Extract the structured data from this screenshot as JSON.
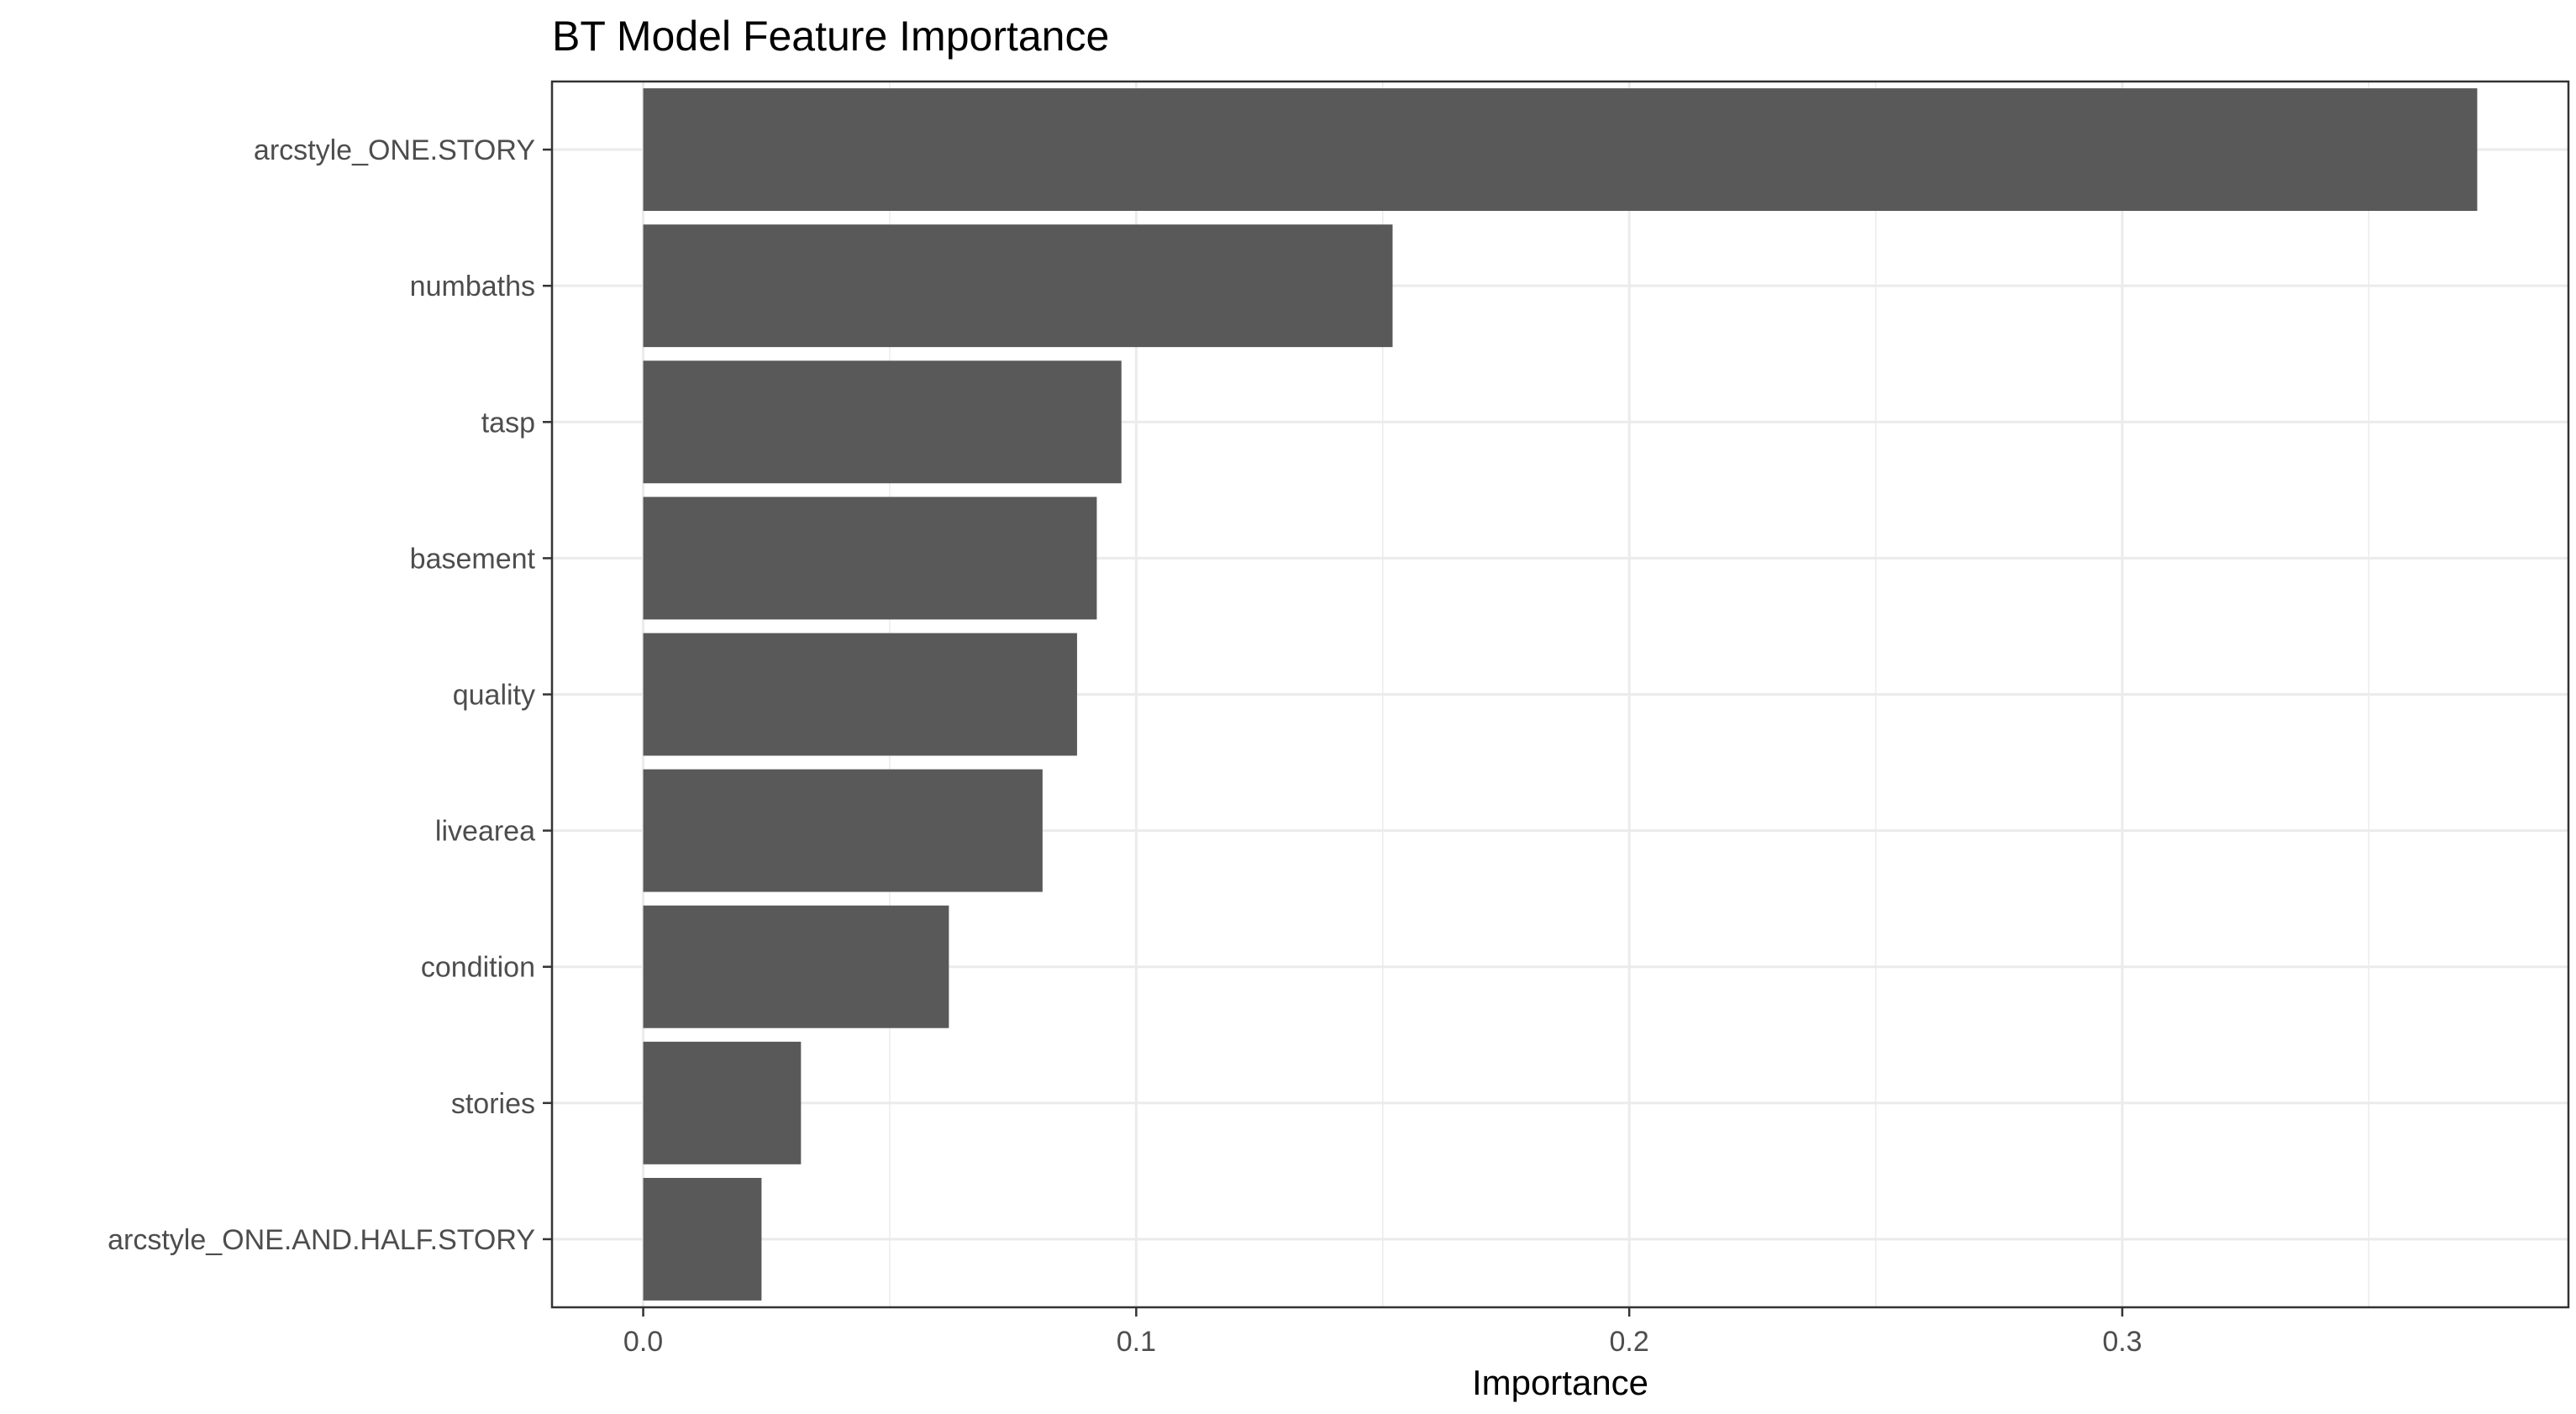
{
  "chart_data": {
    "type": "bar",
    "orientation": "horizontal",
    "title": "BT Model Feature Importance",
    "xlabel": "Importance",
    "ylabel": "",
    "categories": [
      "arcstyle_ONE.STORY",
      "numbaths",
      "tasp",
      "basement",
      "quality",
      "livearea",
      "condition",
      "stories",
      "arcstyle_ONE.AND.HALF.STORY"
    ],
    "values": [
      0.372,
      0.152,
      0.097,
      0.092,
      0.088,
      0.081,
      0.062,
      0.032,
      0.024
    ],
    "xlim": [
      -0.0185,
      0.3905
    ],
    "x_ticks": [
      0.0,
      0.1,
      0.2,
      0.3
    ],
    "x_tick_labels": [
      "0.0",
      "0.1",
      "0.2",
      "0.3"
    ],
    "grid": true,
    "legend": "none",
    "colors": {
      "bar": "#595959",
      "grid": "#ebebeb",
      "panel_border": "#333333",
      "tick": "#333333",
      "tick_text": "#4d4d4d",
      "background": "#ffffff"
    }
  }
}
